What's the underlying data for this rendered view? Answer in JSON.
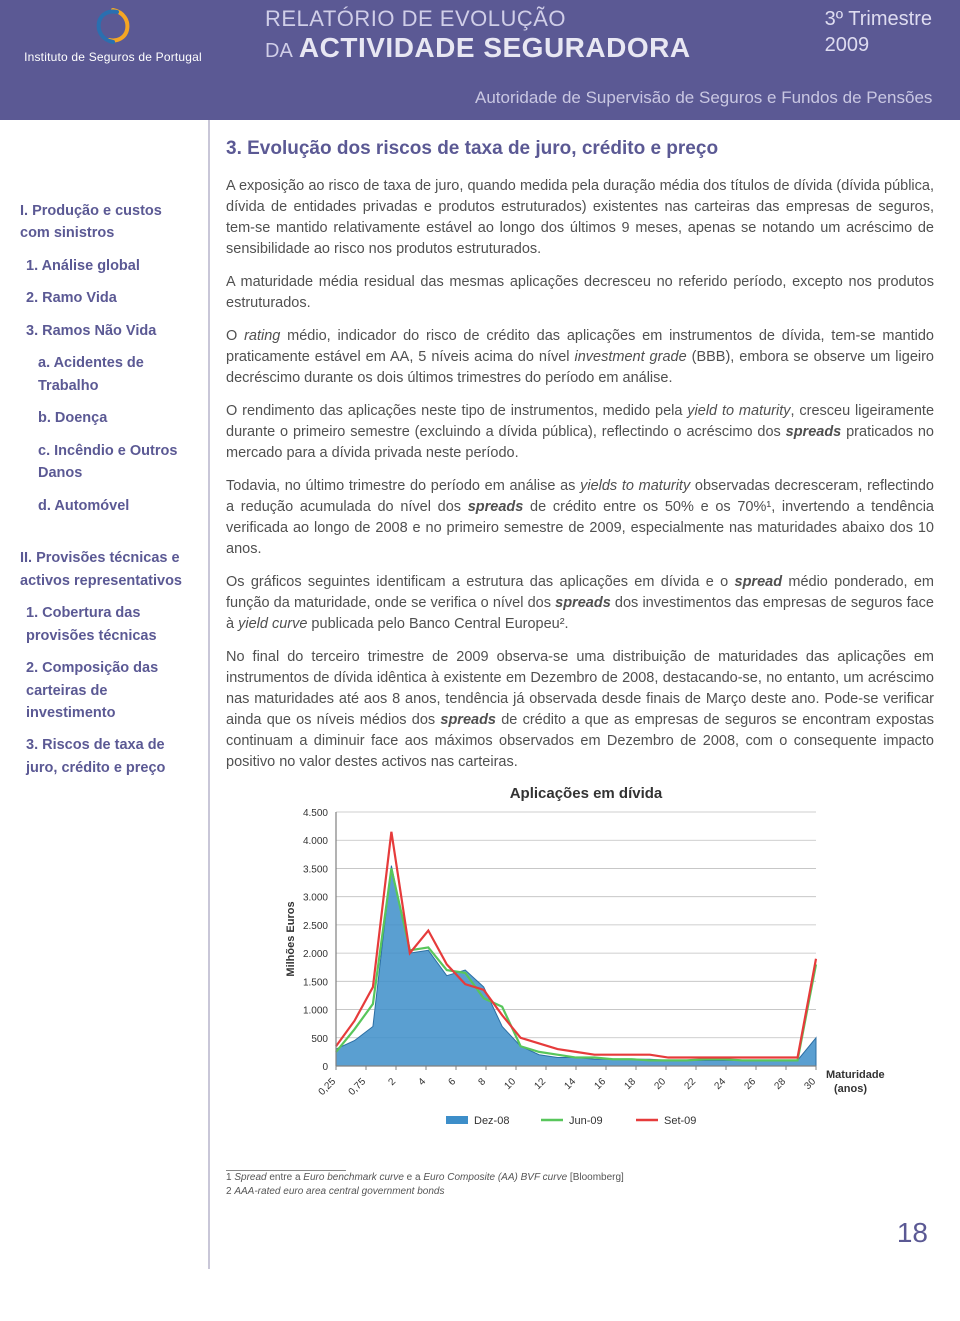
{
  "header": {
    "institution": "Instituto de Seguros de Portugal",
    "title_line1": "RELATÓRIO DE EVOLUÇÃO",
    "title_line2_small": "DA",
    "title_line2_big": "ACTIVIDADE SEGURADORA",
    "period_line1": "3º Trimestre",
    "period_line2": "2009",
    "subheader": "Autoridade de Supervisão de Seguros e Fundos de Pensões",
    "colors": {
      "bg": "#5b5994",
      "light": "#d0cee8"
    }
  },
  "sidebar": {
    "groups": [
      {
        "title": "I. Produção e custos com sinistros",
        "items": [
          {
            "label": "1. Análise global",
            "sub": []
          },
          {
            "label": "2. Ramo Vida",
            "sub": []
          },
          {
            "label": "3. Ramos Não Vida",
            "sub": [
              "a. Acidentes de Trabalho",
              "b. Doença",
              "c. Incêndio e Outros Danos",
              "d. Automóvel"
            ]
          }
        ]
      },
      {
        "title": "II. Provisões técnicas e activos representativos",
        "items": [
          {
            "label": "1. Cobertura das provisões técnicas",
            "sub": []
          },
          {
            "label": "2. Composição das carteiras de investimento",
            "sub": []
          },
          {
            "label": "3. Riscos de taxa de juro, crédito e preço",
            "sub": []
          }
        ]
      }
    ]
  },
  "main": {
    "section_head": "3. Evolução dos riscos de taxa de juro, crédito e preço",
    "paragraphs": [
      "A exposição ao risco de taxa de juro, quando medida pela duração média dos títulos de dívida (dívida pública, dívida de entidades privadas e produtos estruturados) existentes nas carteiras das empresas de seguros, tem-se mantido relativamente estável ao longo dos últimos 9 meses, apenas se notando um acréscimo de sensibilidade ao risco nos produtos estruturados.",
      "A maturidade média residual das mesmas aplicações decresceu no referido período, excepto nos produtos estruturados.",
      "O <i>rating</i> médio, indicador do risco de crédito das aplicações em instrumentos de dívida, tem-se mantido praticamente estável em AA, 5 níveis acima do nível <i>investment grade</i> (BBB), embora se observe um ligeiro decréscimo durante os dois últimos trimestres do período em análise.",
      "O rendimento das aplicações neste tipo de instrumentos, medido pela <i>yield to maturity</i>, cresceu ligeiramente durante o primeiro semestre (excluindo a dívida pública), reflectindo o acréscimo dos <span class='b'><i>spreads</i></span> praticados no mercado para a dívida privada neste período.",
      "Todavia, no último trimestre do período em análise as <i>yields to maturity</i> observadas decresceram, reflectindo a redução acumulada do nível dos <span class='b'><i>spreads</i></span> de crédito entre os 50% e os 70%¹, invertendo a tendência verificada ao longo de 2008 e no primeiro semestre de 2009, especialmente nas maturidades abaixo dos 10 anos.",
      "Os gráficos seguintes identificam a estrutura das aplicações em dívida e o <span class='b'><i>spread</i></span> médio ponderado, em função da maturidade, onde se verifica o nível dos <span class='b'><i>spreads</i></span> dos investimentos das empresas de seguros face à <i>yield curve</i> publicada pelo Banco Central Europeu².",
      "No final do terceiro trimestre de 2009 observa-se uma distribuição de maturidades das aplicações em instrumentos de dívida idêntica à existente em Dezembro de 2008, destacando-se, no entanto, um acréscimo nas maturidades até aos 8 anos, tendência já observada desde finais de Março deste ano. Pode-se verificar ainda que os níveis médios dos <span class='b'><i>spreads</i></span> de crédito a que as empresas de seguros se encontram expostas continuam a diminuir face aos máximos observados em Dezembro de 2008, com o consequente impacto positivo no valor destes activos nas carteiras."
    ]
  },
  "chart": {
    "type": "area+line",
    "title": "Aplicações em dívida",
    "y_label": "Milhões Euros",
    "x_label": "Maturidade (anos)",
    "ylim": [
      0,
      4500
    ],
    "ytick_step": 500,
    "yticks": [
      "0",
      "500",
      "1.000",
      "1.500",
      "2.000",
      "2.500",
      "3.000",
      "3.500",
      "4.000",
      "4.500"
    ],
    "x_categories": [
      "0,25",
      "0,75",
      "2",
      "4",
      "6",
      "8",
      "10",
      "12",
      "14",
      "16",
      "18",
      "20",
      "22",
      "24",
      "26",
      "28",
      "30"
    ],
    "series": [
      {
        "name": "Dez-08",
        "kind": "area",
        "color_fill": "#3d8ec9",
        "color_line": "#2c6fa4",
        "values": [
          300,
          450,
          700,
          3550,
          2000,
          2050,
          1600,
          1700,
          1400,
          700,
          350,
          200,
          150,
          150,
          120,
          120,
          120,
          120,
          100,
          100,
          100,
          100,
          100,
          100,
          100,
          100,
          500
        ]
      },
      {
        "name": "Jun-09",
        "kind": "line",
        "color": "#58c65b",
        "width": 2.2,
        "values": [
          250,
          650,
          1100,
          3500,
          2050,
          2100,
          1700,
          1650,
          1200,
          1050,
          350,
          250,
          200,
          150,
          150,
          120,
          120,
          100,
          100,
          100,
          120,
          120,
          100,
          100,
          100,
          100,
          1800
        ]
      },
      {
        "name": "Set-09",
        "kind": "line",
        "color": "#e63b3b",
        "width": 2.2,
        "values": [
          350,
          800,
          1400,
          4150,
          2000,
          2400,
          1800,
          1450,
          1350,
          900,
          500,
          400,
          300,
          250,
          200,
          200,
          200,
          200,
          150,
          150,
          150,
          150,
          150,
          150,
          150,
          150,
          1900
        ]
      }
    ],
    "legend": [
      "Dez-08",
      "Jun-09",
      "Set-09"
    ],
    "colors": {
      "grid": "#bfbfbf",
      "axis": "#808080",
      "text": "#333333",
      "bg": "#ffffff"
    },
    "axis_fontsize": 10,
    "label_fontsize": 11
  },
  "footnotes": {
    "fn1_pre": "1 ",
    "fn1_i": "Spread",
    "fn1_mid": " entre a ",
    "fn1_i2": "Euro benchmark curve",
    "fn1_mid2": " e a ",
    "fn1_i3": "Euro Composite (AA) BVF curve",
    "fn1_post": " [Bloomberg]",
    "fn2_pre": "2 ",
    "fn2_i": "AAA-rated euro area central government bonds"
  },
  "page_number": "18"
}
